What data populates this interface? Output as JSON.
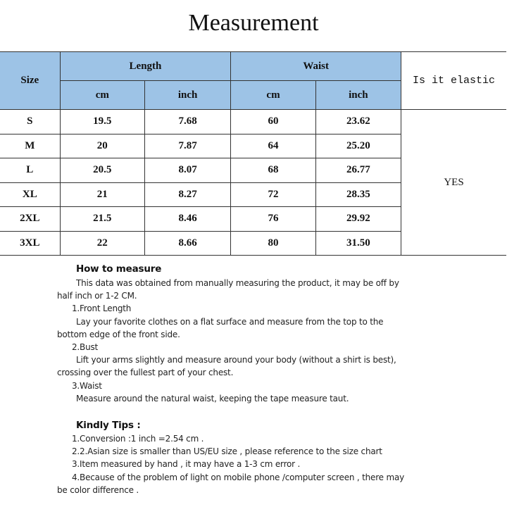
{
  "title": "Measurement",
  "table": {
    "size_header": "Size",
    "length_header": "Length",
    "waist_header": "Waist",
    "elastic_header": "Is it elastic",
    "units": [
      "cm",
      "inch",
      "cm",
      "inch"
    ],
    "elastic_value": "YES",
    "rows": [
      [
        "S",
        "19.5",
        "7.68",
        "60",
        "23.62"
      ],
      [
        "M",
        "20",
        "7.87",
        "64",
        "25.20"
      ],
      [
        "L",
        "20.5",
        "8.07",
        "68",
        "26.77"
      ],
      [
        "XL",
        "21",
        "8.27",
        "72",
        "28.35"
      ],
      [
        "2XL",
        "21.5",
        "8.46",
        "76",
        "29.92"
      ],
      [
        "3XL",
        "22",
        "8.66",
        "80",
        "31.50"
      ]
    ]
  },
  "how_to_measure": {
    "heading": "How to measure",
    "lines": [
      "This data was obtained from manually measuring the product, it may be off by",
      "half inch or 1-2 CM.",
      "1.Front Length",
      "Lay your favorite clothes on a flat surface and measure from the top to the",
      "bottom edge of the front side.",
      "2.Bust",
      "Lift your arms slightly and measure around your body (without a shirt is best),",
      "crossing over the fullest part of your chest.",
      "3.Waist",
      "Measure around the natural waist, keeping the tape measure taut."
    ]
  },
  "tips": {
    "heading": "Kindly Tips :",
    "lines": [
      "1.Conversion :1 inch =2.54 cm .",
      "2.2.Asian size is smaller than US/EU size , please reference to the size chart",
      "3.Item measured by hand , it may have a 1-3 cm error .",
      "4.Because of the problem of light on mobile phone /computer screen , there may",
      "be  color difference ."
    ]
  }
}
